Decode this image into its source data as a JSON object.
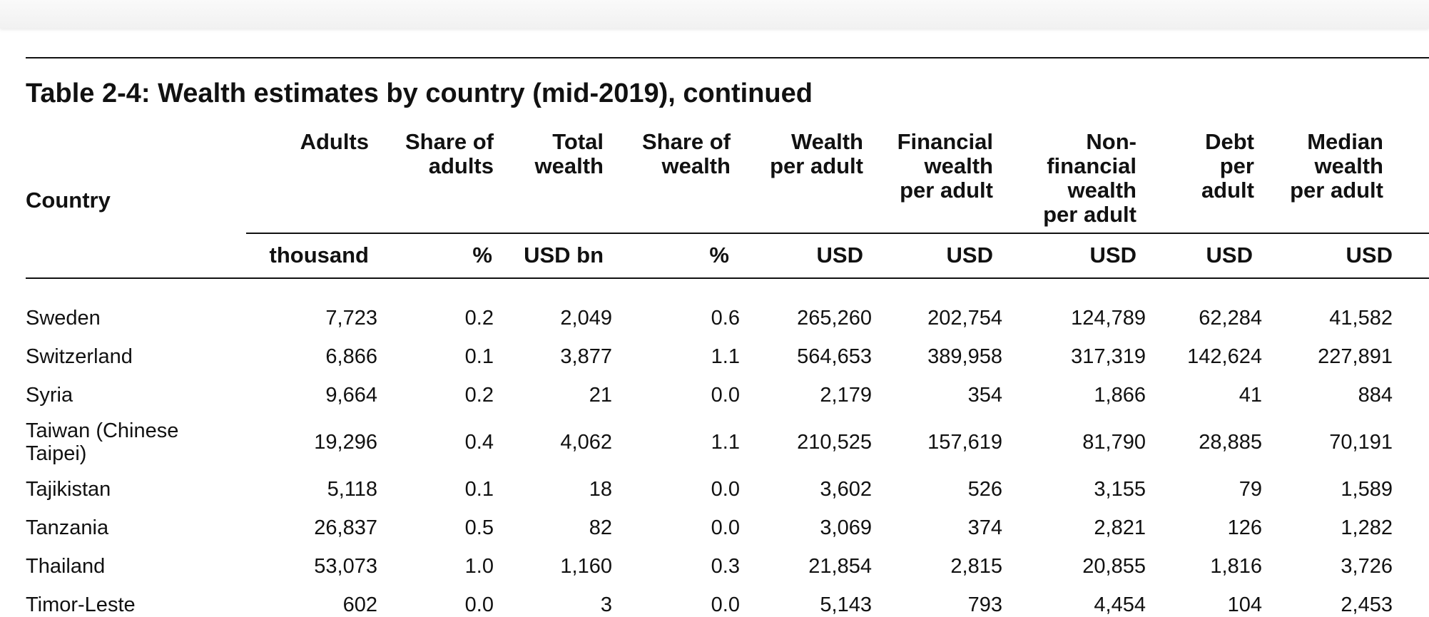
{
  "title": "Table 2-4: Wealth estimates by country (mid-2019), continued",
  "country_header": "Country",
  "columns": [
    {
      "header": [
        "Adults"
      ],
      "unit": "thousand"
    },
    {
      "header": [
        "Share of",
        "adults"
      ],
      "unit": "%"
    },
    {
      "header": [
        "Total",
        "wealth"
      ],
      "unit": "USD bn"
    },
    {
      "header": [
        "Share of",
        "wealth"
      ],
      "unit": "%"
    },
    {
      "header": [
        "Wealth",
        "per adult"
      ],
      "unit": "USD"
    },
    {
      "header": [
        "Financial",
        "wealth",
        "per adult"
      ],
      "unit": "USD"
    },
    {
      "header": [
        "Non-",
        "financial",
        "wealth",
        "per adult"
      ],
      "unit": "USD"
    },
    {
      "header": [
        "Debt",
        "per",
        "adult"
      ],
      "unit": "USD"
    },
    {
      "header": [
        "Median",
        "wealth",
        "per adult"
      ],
      "unit": "USD"
    }
  ],
  "rows": [
    {
      "country": "Sweden",
      "values": [
        "7,723",
        "0.2",
        "2,049",
        "0.6",
        "265,260",
        "202,754",
        "124,789",
        "62,284",
        "41,582"
      ]
    },
    {
      "country": "Switzerland",
      "values": [
        "6,866",
        "0.1",
        "3,877",
        "1.1",
        "564,653",
        "389,958",
        "317,319",
        "142,624",
        "227,891"
      ]
    },
    {
      "country": "Syria",
      "values": [
        "9,664",
        "0.2",
        "21",
        "0.0",
        "2,179",
        "354",
        "1,866",
        "41",
        "884"
      ]
    },
    {
      "country": "Taiwan (Chinese Taipei)",
      "values": [
        "19,296",
        "0.4",
        "4,062",
        "1.1",
        "210,525",
        "157,619",
        "81,790",
        "28,885",
        "70,191"
      ]
    },
    {
      "country": "Tajikistan",
      "values": [
        "5,118",
        "0.1",
        "18",
        "0.0",
        "3,602",
        "526",
        "3,155",
        "79",
        "1,589"
      ]
    },
    {
      "country": "Tanzania",
      "values": [
        "26,837",
        "0.5",
        "82",
        "0.0",
        "3,069",
        "374",
        "2,821",
        "126",
        "1,282"
      ]
    },
    {
      "country": "Thailand",
      "values": [
        "53,073",
        "1.0",
        "1,160",
        "0.3",
        "21,854",
        "2,815",
        "20,855",
        "1,816",
        "3,726"
      ]
    },
    {
      "country": "Timor-Leste",
      "values": [
        "602",
        "0.0",
        "3",
        "0.0",
        "5,143",
        "793",
        "4,454",
        "104",
        "2,453"
      ]
    }
  ]
}
